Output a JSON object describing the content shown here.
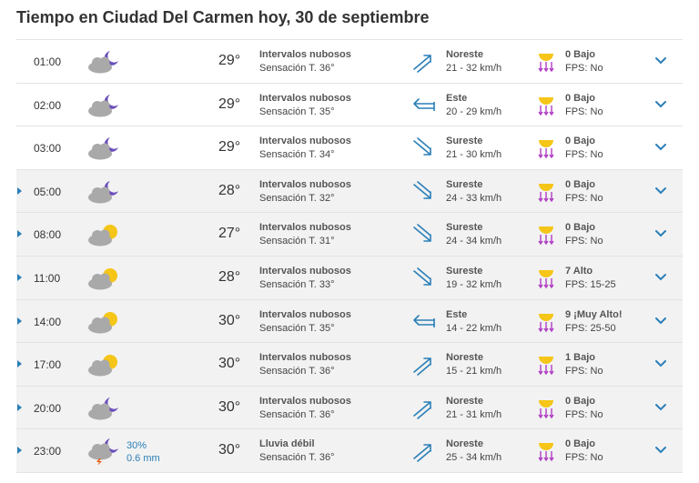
{
  "title": "Tiempo en Ciudad Del Carmen hoy, 30 de septiembre",
  "colors": {
    "accent": "#2a7fb8",
    "cloud": "#a9a9a9",
    "moon": "#6b4fbb",
    "sun": "#f5c518",
    "uv_arrows": "#b03ec4"
  },
  "rows": [
    {
      "time": "01:00",
      "icon": "cloud-moon-icon",
      "rain_pct": "",
      "rain_mm": "",
      "temp": "29°",
      "desc": "Intervalos nubosos",
      "feels": "Sensación T. 36°",
      "wind_dir": "Noreste",
      "wind_speed": "21 - 32 km/h",
      "wind_icon": "ne",
      "uv": "0 Bajo",
      "fps": "FPS: No",
      "expandable": false
    },
    {
      "time": "02:00",
      "icon": "cloud-moon-icon",
      "rain_pct": "",
      "rain_mm": "",
      "temp": "29°",
      "desc": "Intervalos nubosos",
      "feels": "Sensación T. 35°",
      "wind_dir": "Este",
      "wind_speed": "20 - 29 km/h",
      "wind_icon": "e",
      "uv": "0 Bajo",
      "fps": "FPS: No",
      "expandable": false
    },
    {
      "time": "03:00",
      "icon": "cloud-moon-icon",
      "rain_pct": "",
      "rain_mm": "",
      "temp": "29°",
      "desc": "Intervalos nubosos",
      "feels": "Sensación T. 34°",
      "wind_dir": "Sureste",
      "wind_speed": "21 - 30 km/h",
      "wind_icon": "se",
      "uv": "0 Bajo",
      "fps": "FPS: No",
      "expandable": false
    },
    {
      "time": "05:00",
      "icon": "cloud-moon-icon",
      "rain_pct": "",
      "rain_mm": "",
      "temp": "28°",
      "desc": "Intervalos nubosos",
      "feels": "Sensación T. 32°",
      "wind_dir": "Sureste",
      "wind_speed": "24 - 33 km/h",
      "wind_icon": "se",
      "uv": "0 Bajo",
      "fps": "FPS: No",
      "expandable": true
    },
    {
      "time": "08:00",
      "icon": "cloud-sun-icon",
      "rain_pct": "",
      "rain_mm": "",
      "temp": "27°",
      "desc": "Intervalos nubosos",
      "feels": "Sensación T. 31°",
      "wind_dir": "Sureste",
      "wind_speed": "24 - 34 km/h",
      "wind_icon": "se",
      "uv": "0 Bajo",
      "fps": "FPS: No",
      "expandable": true
    },
    {
      "time": "11:00",
      "icon": "cloud-sun-icon",
      "rain_pct": "",
      "rain_mm": "",
      "temp": "28°",
      "desc": "Intervalos nubosos",
      "feels": "Sensación T. 33°",
      "wind_dir": "Sureste",
      "wind_speed": "19 - 32 km/h",
      "wind_icon": "se",
      "uv": "7 Alto",
      "fps": "FPS: 15-25",
      "expandable": true
    },
    {
      "time": "14:00",
      "icon": "cloud-sun-icon",
      "rain_pct": "",
      "rain_mm": "",
      "temp": "30°",
      "desc": "Intervalos nubosos",
      "feels": "Sensación T. 35°",
      "wind_dir": "Este",
      "wind_speed": "14 - 22 km/h",
      "wind_icon": "e",
      "uv": "9 ¡Muy Alto!",
      "fps": "FPS: 25-50",
      "expandable": true
    },
    {
      "time": "17:00",
      "icon": "cloud-sun-icon",
      "rain_pct": "",
      "rain_mm": "",
      "temp": "30°",
      "desc": "Intervalos nubosos",
      "feels": "Sensación T. 36°",
      "wind_dir": "Noreste",
      "wind_speed": "15 - 21 km/h",
      "wind_icon": "ne",
      "uv": "1 Bajo",
      "fps": "FPS: No",
      "expandable": true
    },
    {
      "time": "20:00",
      "icon": "cloud-moon-icon",
      "rain_pct": "",
      "rain_mm": "",
      "temp": "30°",
      "desc": "Intervalos nubosos",
      "feels": "Sensación T. 36°",
      "wind_dir": "Noreste",
      "wind_speed": "21 - 31 km/h",
      "wind_icon": "ne",
      "uv": "0 Bajo",
      "fps": "FPS: No",
      "expandable": true
    },
    {
      "time": "23:00",
      "icon": "cloud-moon-storm-icon",
      "rain_pct": "30%",
      "rain_mm": "0.6 mm",
      "temp": "30°",
      "desc": "Lluvia débil",
      "feels": "Sensación T. 36°",
      "wind_dir": "Noreste",
      "wind_speed": "25 - 34 km/h",
      "wind_icon": "ne",
      "uv": "0 Bajo",
      "fps": "FPS: No",
      "expandable": true
    }
  ]
}
